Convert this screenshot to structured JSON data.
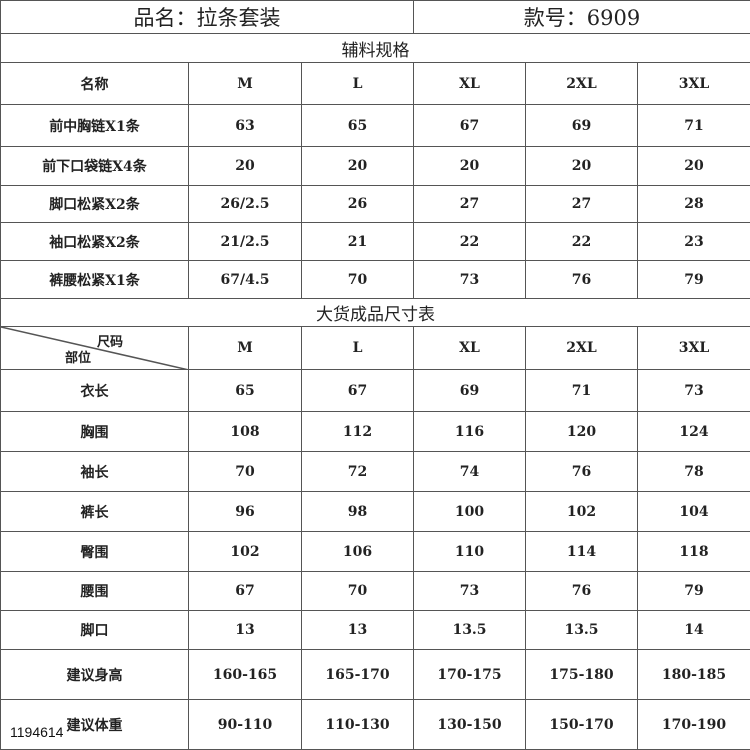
{
  "header": {
    "product_name": "品名：拉条套装",
    "style_no": "款号：6909"
  },
  "accessories": {
    "title": "辅料规格",
    "columns": [
      "名称",
      "M",
      "L",
      "XL",
      "2XL",
      "3XL"
    ],
    "rows": [
      [
        "前中胸链X1条",
        "63",
        "65",
        "67",
        "69",
        "71"
      ],
      [
        "前下口袋链X4条",
        "20",
        "20",
        "20",
        "20",
        "20"
      ],
      [
        "脚口松紧X2条",
        "26/2.5",
        "26",
        "27",
        "27",
        "28"
      ],
      [
        "袖口松紧X2条",
        "21/2.5",
        "21",
        "22",
        "22",
        "23"
      ],
      [
        "裤腰松紧X1条",
        "67/4.5",
        "70",
        "73",
        "76",
        "79"
      ]
    ]
  },
  "sizes": {
    "title": "大货成品尺寸表",
    "corner_top": "尺码",
    "corner_bottom": "部位",
    "columns": [
      "M",
      "L",
      "XL",
      "2XL",
      "3XL"
    ],
    "rows": [
      [
        "衣长",
        "65",
        "67",
        "69",
        "71",
        "73"
      ],
      [
        "胸围",
        "108",
        "112",
        "116",
        "120",
        "124"
      ],
      [
        "袖长",
        "70",
        "72",
        "74",
        "76",
        "78"
      ],
      [
        "裤长",
        "96",
        "98",
        "100",
        "102",
        "104"
      ],
      [
        "臀围",
        "102",
        "106",
        "110",
        "114",
        "118"
      ],
      [
        "腰围",
        "67",
        "70",
        "73",
        "76",
        "79"
      ],
      [
        "脚口",
        "13",
        "13",
        "13.5",
        "13.5",
        "14"
      ],
      [
        "建议身高",
        "160-165",
        "165-170",
        "170-175",
        "175-180",
        "180-185"
      ],
      [
        "建议体重",
        "90-110",
        "110-130",
        "130-150",
        "150-170",
        "170-190"
      ]
    ]
  },
  "watermark": "1194614"
}
